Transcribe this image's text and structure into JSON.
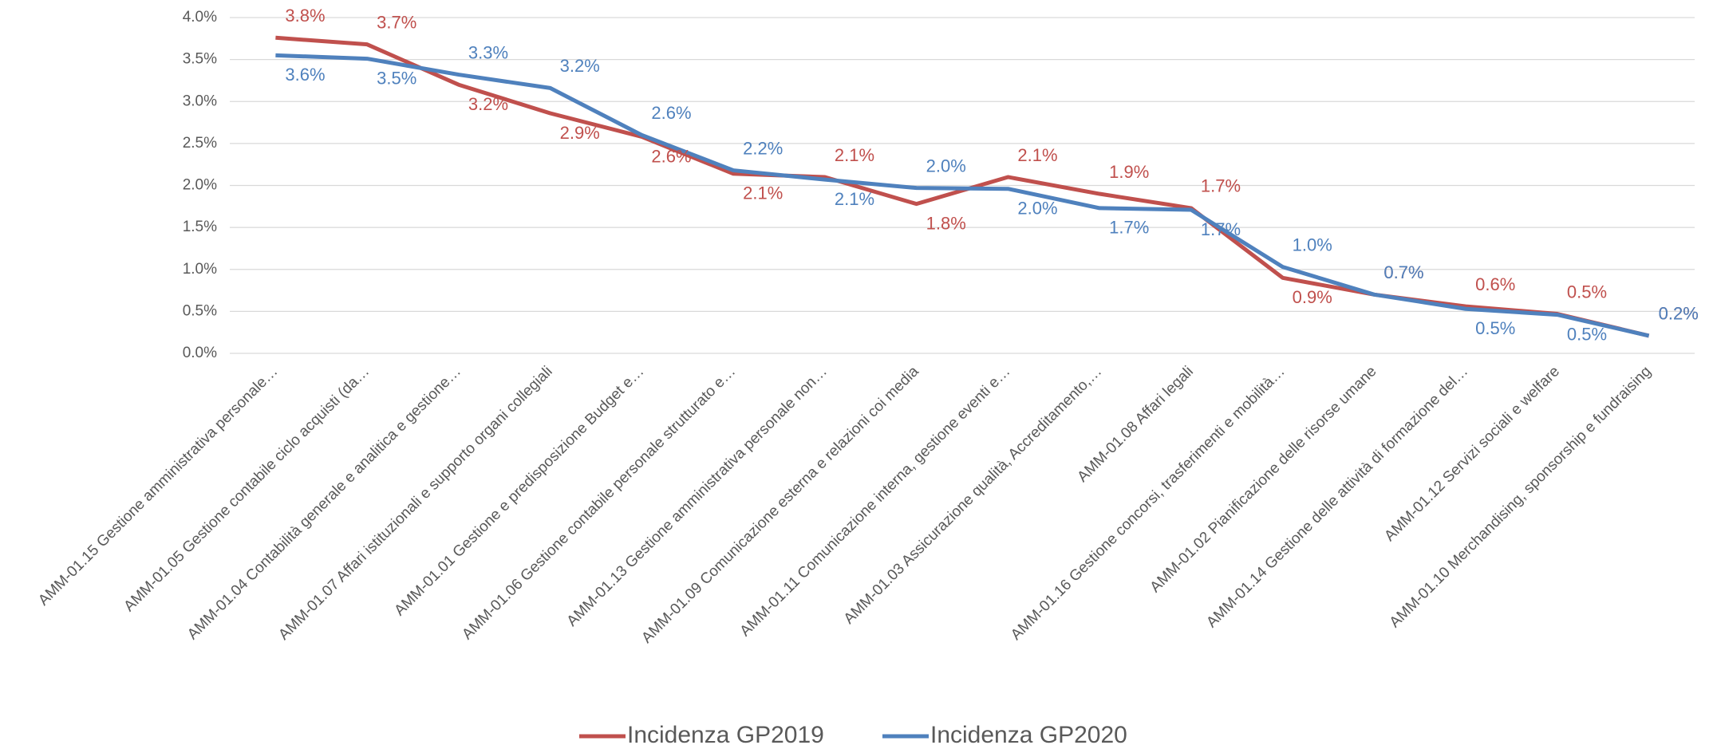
{
  "chart_data": {
    "type": "line",
    "categories": [
      "AMM-01.15 Gestione amministrativa personale…",
      "AMM-01.05 Gestione contabile ciclo acquisti (da…",
      "AMM-01.04 Contabilità generale e analitica e gestione…",
      "AMM-01.07 Affari istituzionali e supporto organi collegiali",
      "AMM-01.01 Gestione e predisposizione Budget e…",
      "AMM-01.06 Gestione contabile personale strutturato e…",
      "AMM-01.13 Gestione amministrativa personale non…",
      "AMM-01.09 Comunicazione esterna e relazioni coi media",
      "AMM-01.11 Comunicazione interna, gestione eventi e…",
      "AMM-01.03 Assicurazione qualità, Accreditamento,…",
      "AMM-01.08 Affari legali",
      "AMM-01.16 Gestione concorsi, trasferimenti e mobilità…",
      "AMM-01.02 Pianificazione delle risorse umane",
      "AMM-01.14 Gestione delle attività di formazione del…",
      "AMM-01.12 Servizi sociali e welfare",
      "AMM-01.10 Merchandising, sponsorship e fundraising"
    ],
    "series": [
      {
        "name": "Incidenza GP2019",
        "color": "#c0504d",
        "values": [
          3.76,
          3.68,
          3.2,
          2.86,
          2.58,
          2.14,
          2.1,
          1.78,
          2.1,
          1.9,
          1.73,
          0.9,
          0.7,
          0.56,
          0.47,
          0.21
        ],
        "value_labels": [
          "3.8%",
          "3.7%",
          "3.2%",
          "2.9%",
          "2.6%",
          "2.1%",
          "2.1%",
          "1.8%",
          "2.1%",
          "1.9%",
          "1.7%",
          "0.9%",
          "0.7%",
          "0.6%",
          "0.5%",
          "0.2%"
        ]
      },
      {
        "name": "Incidenza GP2020",
        "color": "#4f81bd",
        "values": [
          3.55,
          3.51,
          3.32,
          3.16,
          2.6,
          2.18,
          2.07,
          1.97,
          1.96,
          1.73,
          1.71,
          1.03,
          0.7,
          0.53,
          0.46,
          0.21
        ],
        "value_labels": [
          "3.6%",
          "3.5%",
          "3.3%",
          "3.2%",
          "2.6%",
          "2.2%",
          "2.1%",
          "2.0%",
          "2.0%",
          "1.7%",
          "1.7%",
          "1.0%",
          "0.7%",
          "0.5%",
          "0.5%",
          "0.2%"
        ]
      }
    ],
    "ylim": [
      0,
      4
    ],
    "yticks": [
      {
        "value": 0,
        "label": "0.0%"
      },
      {
        "value": 0.5,
        "label": "0.5%"
      },
      {
        "value": 1,
        "label": "1.0%"
      },
      {
        "value": 1.5,
        "label": "1.5%"
      },
      {
        "value": 2,
        "label": "2.0%"
      },
      {
        "value": 2.5,
        "label": "2.5%"
      },
      {
        "value": 3,
        "label": "3.0%"
      },
      {
        "value": 3.5,
        "label": "3.5%"
      },
      {
        "value": 4,
        "label": "4.0%"
      }
    ],
    "grid": true,
    "legend": "bottom"
  }
}
